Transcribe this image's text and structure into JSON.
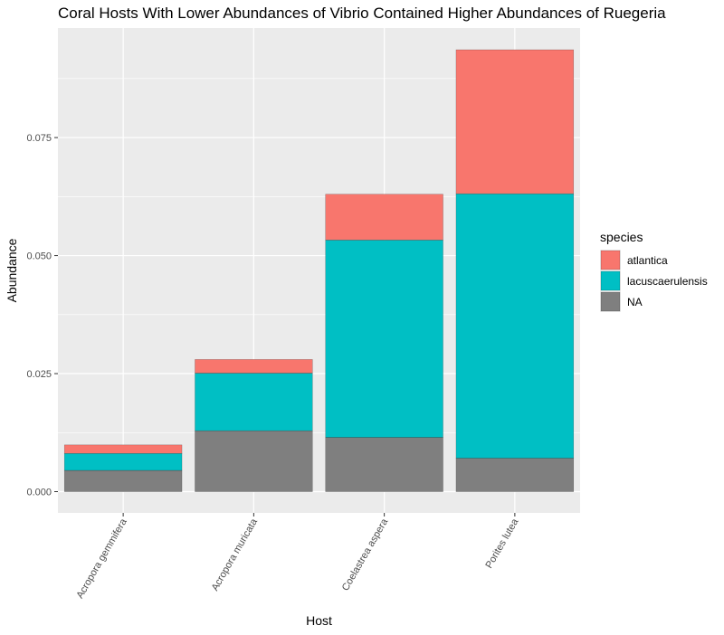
{
  "chart_data": {
    "type": "bar",
    "stacked": true,
    "title": "Coral Hosts With Lower Abundances of Vibrio Contained Higher Abundances of Ruegeria",
    "xlabel": "Host",
    "ylabel": "Abundance",
    "categories": [
      "Acropora gemmifera",
      "Acropora muricata",
      "Coelastrea aspera",
      "Porites lutea"
    ],
    "series": [
      {
        "name": "NA",
        "color": "#7f7f7f",
        "values": [
          0.0045,
          0.0129,
          0.0115,
          0.0071
        ]
      },
      {
        "name": "lacuscaerulensis",
        "color": "#00bfc4",
        "values": [
          0.0036,
          0.0122,
          0.0418,
          0.056
        ]
      },
      {
        "name": "atlantica",
        "color": "#f8766d",
        "values": [
          0.0018,
          0.0029,
          0.0097,
          0.0305
        ]
      }
    ],
    "legend": {
      "title": "species",
      "placement": "right",
      "order": [
        "atlantica",
        "lacuscaerulensis",
        "NA"
      ]
    },
    "yticks": [
      0,
      0.025,
      0.05,
      0.075
    ],
    "ytick_labels": [
      "0.000",
      "0.025",
      "0.050",
      "0.075"
    ],
    "ylim": [
      -0.0045,
      0.0982
    ],
    "grid": true,
    "background": "#ebebeb"
  }
}
